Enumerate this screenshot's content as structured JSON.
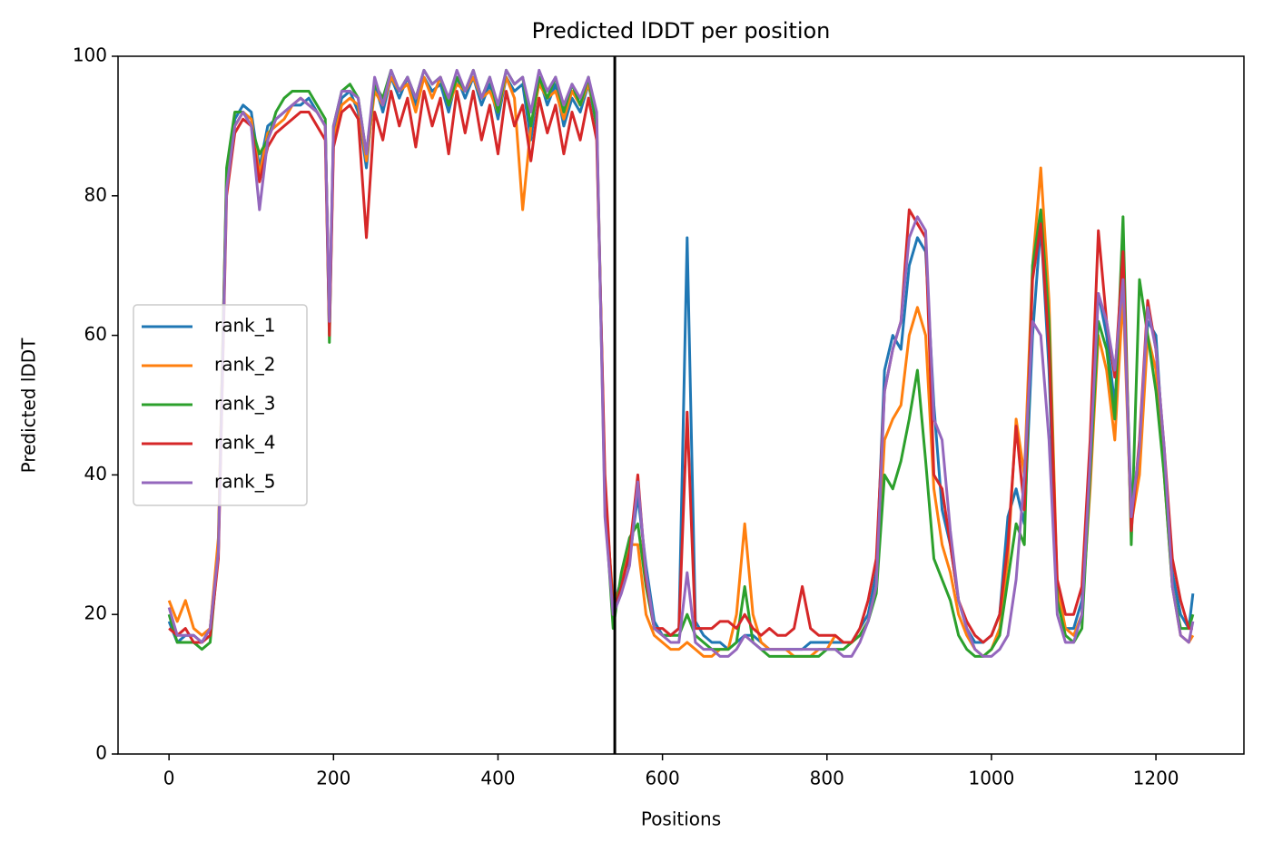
{
  "chart_data": {
    "type": "line",
    "title": "Predicted lDDT per position",
    "xlabel": "Positions",
    "ylabel": "Predicted lDDT",
    "x": [
      0,
      10,
      20,
      30,
      40,
      50,
      60,
      70,
      80,
      90,
      100,
      110,
      120,
      130,
      140,
      150,
      160,
      170,
      180,
      190,
      195,
      200,
      210,
      220,
      230,
      240,
      250,
      260,
      270,
      280,
      290,
      300,
      310,
      320,
      330,
      340,
      350,
      360,
      370,
      380,
      390,
      400,
      410,
      420,
      430,
      440,
      450,
      460,
      470,
      480,
      490,
      500,
      510,
      520,
      530,
      540,
      550,
      560,
      570,
      580,
      590,
      600,
      610,
      620,
      630,
      640,
      650,
      660,
      670,
      680,
      690,
      700,
      710,
      720,
      730,
      740,
      750,
      760,
      770,
      780,
      790,
      800,
      810,
      820,
      830,
      840,
      850,
      860,
      870,
      880,
      890,
      900,
      910,
      920,
      930,
      940,
      950,
      960,
      970,
      980,
      990,
      1000,
      1010,
      1020,
      1030,
      1040,
      1050,
      1060,
      1070,
      1080,
      1090,
      1100,
      1110,
      1120,
      1130,
      1140,
      1150,
      1160,
      1170,
      1180,
      1190,
      1200,
      1210,
      1220,
      1230,
      1240,
      1245
    ],
    "series": [
      {
        "name": "rank_1",
        "color": "#1f77b4",
        "values": [
          19,
          16,
          17,
          17,
          16,
          18,
          30,
          82,
          91,
          93,
          92,
          84,
          90,
          91,
          92,
          93,
          93,
          94,
          92,
          90,
          61,
          89,
          94,
          95,
          92,
          84,
          96,
          92,
          97,
          94,
          97,
          93,
          97,
          95,
          96,
          92,
          97,
          94,
          97,
          93,
          96,
          91,
          97,
          95,
          96,
          88,
          97,
          93,
          96,
          90,
          94,
          92,
          96,
          90,
          38,
          21,
          25,
          28,
          37,
          27,
          19,
          17,
          17,
          18,
          74,
          19,
          17,
          16,
          16,
          15,
          16,
          17,
          17,
          16,
          15,
          15,
          15,
          15,
          15,
          16,
          16,
          16,
          16,
          16,
          16,
          18,
          20,
          26,
          55,
          60,
          58,
          70,
          74,
          72,
          50,
          35,
          30,
          22,
          18,
          16,
          16,
          17,
          20,
          34,
          38,
          33,
          60,
          76,
          55,
          22,
          18,
          18,
          22,
          42,
          66,
          60,
          50,
          70,
          35,
          42,
          62,
          60,
          42,
          26,
          20,
          18,
          23
        ]
      },
      {
        "name": "rank_2",
        "color": "#ff7f0e",
        "values": [
          22,
          19,
          22,
          18,
          17,
          18,
          31,
          83,
          90,
          92,
          91,
          83,
          89,
          90,
          91,
          93,
          94,
          93,
          92,
          90,
          62,
          88,
          93,
          94,
          93,
          85,
          95,
          93,
          97,
          95,
          96,
          92,
          97,
          94,
          97,
          93,
          96,
          95,
          97,
          94,
          95,
          92,
          97,
          94,
          78,
          90,
          96,
          94,
          95,
          91,
          95,
          93,
          96,
          91,
          37,
          22,
          24,
          30,
          30,
          20,
          17,
          16,
          15,
          15,
          16,
          15,
          14,
          14,
          15,
          15,
          20,
          33,
          20,
          16,
          15,
          15,
          15,
          14,
          14,
          14,
          15,
          15,
          17,
          16,
          16,
          17,
          19,
          24,
          45,
          48,
          50,
          60,
          64,
          60,
          38,
          30,
          26,
          20,
          17,
          15,
          14,
          15,
          18,
          28,
          48,
          40,
          70,
          84,
          65,
          24,
          18,
          17,
          20,
          38,
          60,
          55,
          45,
          66,
          33,
          40,
          60,
          55,
          40,
          24,
          17,
          16,
          17
        ]
      },
      {
        "name": "rank_3",
        "color": "#2ca02c",
        "values": [
          20,
          16,
          16,
          16,
          15,
          16,
          29,
          84,
          92,
          92,
          90,
          86,
          88,
          92,
          94,
          95,
          95,
          95,
          93,
          91,
          59,
          90,
          95,
          96,
          94,
          86,
          96,
          94,
          98,
          95,
          97,
          94,
          98,
          96,
          97,
          93,
          97,
          95,
          98,
          94,
          97,
          92,
          98,
          96,
          97,
          90,
          97,
          94,
          97,
          92,
          96,
          93,
          97,
          90,
          36,
          18,
          26,
          31,
          33,
          24,
          18,
          17,
          17,
          17,
          20,
          17,
          16,
          15,
          15,
          15,
          16,
          24,
          16,
          15,
          14,
          14,
          14,
          14,
          14,
          14,
          14,
          15,
          15,
          15,
          16,
          17,
          19,
          23,
          40,
          38,
          42,
          48,
          55,
          42,
          28,
          25,
          22,
          17,
          15,
          14,
          14,
          15,
          17,
          25,
          33,
          30,
          70,
          78,
          62,
          22,
          17,
          16,
          18,
          40,
          62,
          58,
          48,
          77,
          30,
          68,
          60,
          52,
          40,
          24,
          18,
          18,
          20
        ]
      },
      {
        "name": "rank_4",
        "color": "#d62728",
        "values": [
          18,
          17,
          18,
          16,
          16,
          17,
          28,
          80,
          89,
          91,
          90,
          82,
          87,
          89,
          90,
          91,
          92,
          92,
          90,
          88,
          60,
          87,
          92,
          93,
          91,
          74,
          92,
          88,
          95,
          90,
          94,
          87,
          95,
          90,
          94,
          86,
          95,
          89,
          95,
          88,
          93,
          86,
          95,
          90,
          93,
          85,
          94,
          89,
          93,
          86,
          92,
          88,
          94,
          88,
          40,
          20,
          24,
          29,
          40,
          25,
          18,
          18,
          17,
          18,
          49,
          18,
          18,
          18,
          19,
          19,
          18,
          20,
          18,
          17,
          18,
          17,
          17,
          18,
          24,
          18,
          17,
          17,
          17,
          16,
          16,
          18,
          22,
          28,
          52,
          58,
          62,
          78,
          76,
          74,
          40,
          38,
          30,
          22,
          19,
          17,
          16,
          17,
          20,
          30,
          47,
          35,
          68,
          76,
          58,
          25,
          20,
          20,
          24,
          45,
          75,
          62,
          54,
          72,
          32,
          45,
          65,
          58,
          44,
          28,
          22,
          18,
          18
        ]
      },
      {
        "name": "rank_5",
        "color": "#9467bd",
        "values": [
          21,
          17,
          17,
          17,
          16,
          18,
          29,
          81,
          90,
          92,
          90,
          78,
          88,
          91,
          92,
          93,
          94,
          93,
          92,
          90,
          62,
          90,
          95,
          95,
          94,
          86,
          97,
          93,
          98,
          95,
          97,
          94,
          98,
          96,
          97,
          94,
          98,
          95,
          98,
          94,
          97,
          93,
          98,
          96,
          97,
          92,
          98,
          95,
          97,
          93,
          96,
          94,
          97,
          92,
          34,
          20,
          23,
          27,
          39,
          26,
          18,
          17,
          16,
          16,
          26,
          16,
          15,
          15,
          14,
          14,
          15,
          17,
          16,
          15,
          15,
          15,
          15,
          15,
          15,
          15,
          15,
          15,
          15,
          14,
          14,
          16,
          19,
          24,
          52,
          58,
          62,
          74,
          77,
          75,
          48,
          45,
          32,
          22,
          18,
          15,
          14,
          14,
          15,
          17,
          25,
          40,
          62,
          60,
          45,
          20,
          16,
          16,
          20,
          42,
          66,
          62,
          55,
          68,
          34,
          44,
          64,
          58,
          44,
          24,
          17,
          16,
          19
        ]
      }
    ],
    "vlines": [
      542
    ],
    "xlim": [
      -62,
      1307
    ],
    "ylim": [
      0,
      100
    ],
    "xticks": [
      0,
      200,
      400,
      600,
      800,
      1000,
      1200
    ],
    "yticks": [
      0,
      20,
      40,
      60,
      80,
      100
    ],
    "legend": "center left"
  }
}
